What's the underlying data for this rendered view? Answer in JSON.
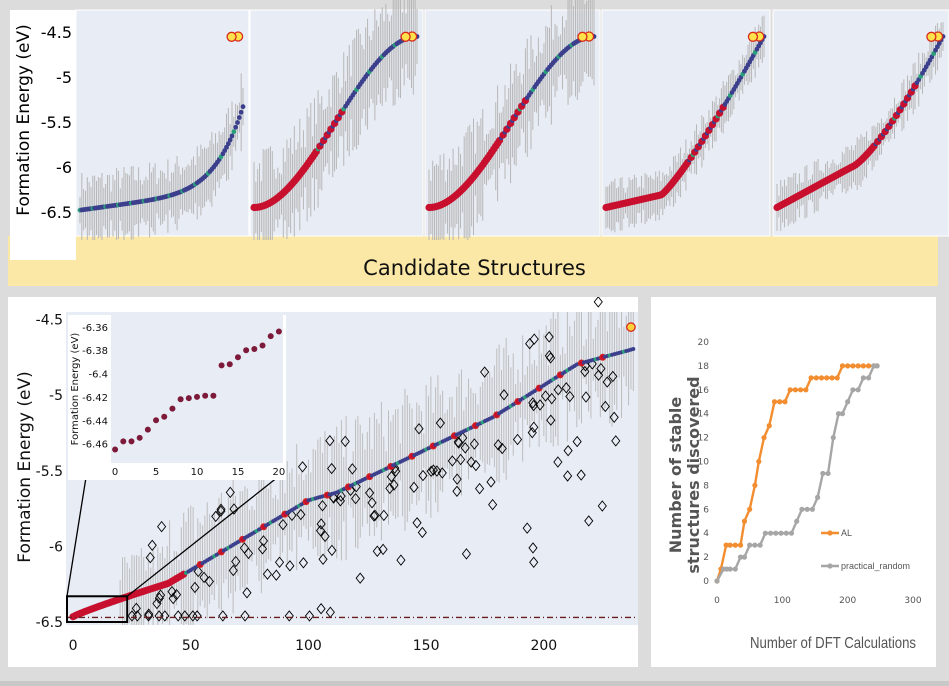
{
  "chart_data": [
    {
      "type": "scatter",
      "panel": "top-strip",
      "subplots": 5,
      "ylabel": "Formation Energy (eV)",
      "yticks": [
        "-4.5",
        "-5",
        "-5.5",
        "-6",
        "-6.5"
      ],
      "ylim": [
        -6.6,
        -4.4
      ],
      "xlabel": "Candidate Structures",
      "error_bars": true,
      "grid": false
    },
    {
      "type": "scatter",
      "panel": "main",
      "ylabel": "Formation Energy (eV)",
      "xlim": [
        -3,
        240
      ],
      "ylim": [
        -6.52,
        -4.45
      ],
      "xticks": [
        "0",
        "50",
        "100",
        "150",
        "200"
      ],
      "yticks": [
        "-4.5",
        "-5",
        "-5.5",
        "-6",
        "-6.5"
      ],
      "reference_line_y": -6.47,
      "series": [
        {
          "marker": "circle",
          "color": "colored by uncertainty",
          "error_bars": true
        },
        {
          "marker": "diamond",
          "color": "#000000",
          "fill": "none"
        }
      ],
      "inset": {
        "ylabel": "Formation Energy (eV)",
        "xticks": [
          "0",
          "5",
          "10",
          "15",
          "20"
        ],
        "yticks": [
          "-6.36",
          "-6.38",
          "-6.4",
          "-6.42",
          "-6.44",
          "-6.46"
        ],
        "xlim": [
          -0.5,
          20.5
        ],
        "ylim": [
          -6.468,
          -6.355
        ],
        "x": [
          0,
          1,
          2,
          3,
          4,
          5,
          6,
          7,
          8,
          9,
          10,
          11,
          12,
          13,
          14,
          15,
          16,
          17,
          18,
          19,
          20
        ],
        "y": [
          -6.465,
          -6.458,
          -6.458,
          -6.455,
          -6.448,
          -6.44,
          -6.437,
          -6.43,
          -6.422,
          -6.421,
          -6.42,
          -6.419,
          -6.419,
          -6.393,
          -6.392,
          -6.386,
          -6.38,
          -6.379,
          -6.376,
          -6.368,
          -6.364
        ]
      }
    },
    {
      "type": "line",
      "panel": "right",
      "xlabel": "Number of DFT Calculations",
      "ylabel": "Number of stable structures discovered",
      "xlim": [
        0,
        300
      ],
      "ylim": [
        0,
        20
      ],
      "xticks": [
        "0",
        "100",
        "200",
        "300"
      ],
      "yticks": [
        "0",
        "2",
        "4",
        "6",
        "8",
        "10",
        "12",
        "14",
        "16",
        "18",
        "20"
      ],
      "legend_position": "right",
      "series": [
        {
          "name": "AL",
          "color": "#f28d30",
          "x": [
            0,
            6,
            14,
            20,
            28,
            36,
            42,
            50,
            58,
            64,
            72,
            80,
            88,
            96,
            104,
            112,
            120,
            128,
            136,
            144,
            152,
            160,
            168,
            176,
            184,
            192,
            200,
            208,
            216,
            224,
            232,
            240,
            245
          ],
          "y": [
            0,
            1,
            3,
            3,
            3,
            3,
            5,
            6,
            8,
            10,
            12,
            13,
            15,
            15,
            15,
            16,
            16,
            16,
            16,
            17,
            17,
            17,
            17,
            17,
            17,
            18,
            18,
            18,
            18,
            18,
            18,
            18,
            18
          ]
        },
        {
          "name": "practical_random",
          "color": "#a6a6a6",
          "x": [
            0,
            10,
            15,
            20,
            28,
            36,
            42,
            50,
            58,
            66,
            74,
            82,
            90,
            98,
            106,
            114,
            122,
            130,
            138,
            146,
            154,
            162,
            170,
            178,
            186,
            192,
            200,
            208,
            216,
            224,
            232,
            240,
            245
          ],
          "y": [
            0,
            1,
            1,
            1,
            1,
            2,
            2,
            3,
            3,
            3,
            4,
            4,
            4,
            4,
            4,
            4,
            5,
            6,
            6,
            6,
            7,
            9,
            9,
            12,
            14,
            14,
            15,
            16,
            16,
            17,
            17,
            18,
            18
          ]
        }
      ]
    }
  ],
  "colors": {
    "band": "#fbe8a6",
    "plot_bg": "#e8ecf5",
    "al": "#f28d30",
    "random": "#a6a6a6",
    "stable": "#c8102e"
  }
}
